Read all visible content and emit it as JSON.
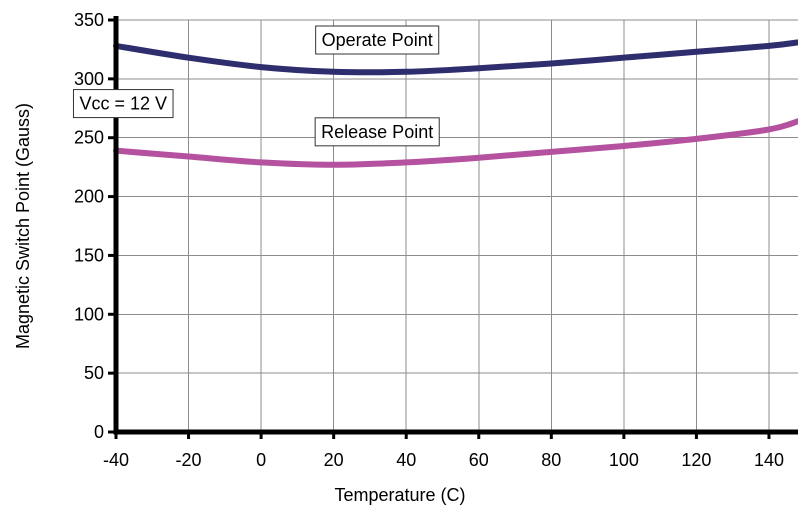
{
  "chart_data": {
    "type": "line",
    "title": "",
    "xlabel": "Temperature (C)",
    "ylabel": "Magnetic Switch Point (Gauss)",
    "xlim": [
      -40,
      148
    ],
    "ylim": [
      0,
      350
    ],
    "x_ticks": [
      -40,
      -20,
      0,
      20,
      40,
      60,
      80,
      100,
      120,
      140
    ],
    "y_ticks": [
      0,
      50,
      100,
      150,
      200,
      250,
      300,
      350
    ],
    "grid": true,
    "legend": "none",
    "series": [
      {
        "name": "Operate Point",
        "color": "#2e2d6e",
        "x": [
          -40,
          -20,
          0,
          20,
          40,
          60,
          80,
          100,
          120,
          140,
          148
        ],
        "y": [
          328,
          318,
          310,
          306,
          306,
          309,
          313,
          318,
          323,
          328,
          331
        ]
      },
      {
        "name": "Release Point",
        "color": "#b5529f",
        "x": [
          -40,
          -20,
          0,
          20,
          40,
          60,
          80,
          100,
          120,
          140,
          148
        ],
        "y": [
          239,
          234,
          229,
          227,
          229,
          233,
          238,
          243,
          249,
          257,
          264
        ]
      }
    ],
    "annotations": [
      {
        "text": "Operate Point",
        "x": 32,
        "y": 333
      },
      {
        "text": "Release Point",
        "x": 32,
        "y": 255
      },
      {
        "text": "Vcc = 12 V",
        "x": -38,
        "y": 279
      }
    ]
  }
}
